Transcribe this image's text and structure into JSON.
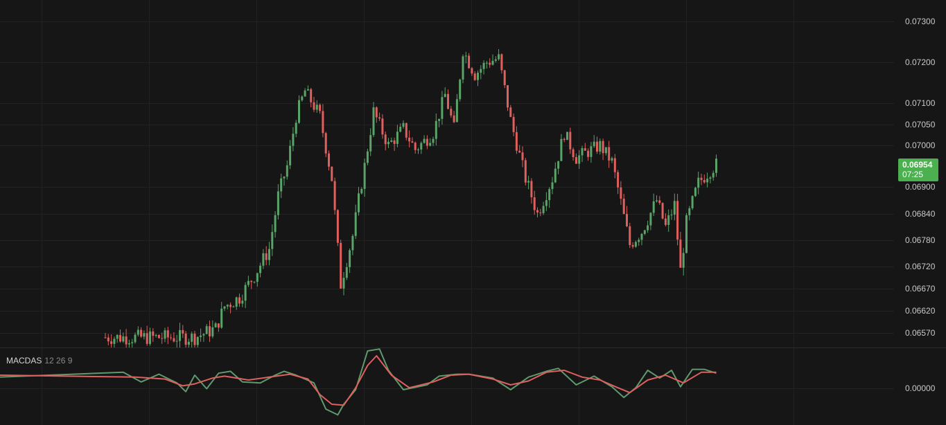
{
  "colors": {
    "background": "#161616",
    "grid": "#222222",
    "up": "#5aa469",
    "down": "#e0605e",
    "macd_line": "#5f9a6e",
    "signal_line": "#e0605e",
    "badge": "#4caf50",
    "pane_divider": "#2b2b2b"
  },
  "indicator": {
    "name": "MACDAS",
    "params": "12 26 9"
  },
  "last_price": {
    "value": "0.06954",
    "countdown": "07:25"
  },
  "price_axis": {
    "labels": [
      "0.07300",
      "0.07200",
      "0.07100",
      "0.07050",
      "0.07000",
      "0.06900",
      "0.06840",
      "0.06780",
      "0.06720",
      "0.06670",
      "0.06620",
      "0.06570"
    ]
  },
  "macd_axis": {
    "labels": [
      "0.00000"
    ]
  },
  "chart_data": [
    {
      "type": "candlestick",
      "pane": "price",
      "ylim": [
        0.06565,
        0.073
      ],
      "y_ticks": [
        0.073,
        0.072,
        0.071,
        0.0705,
        0.07,
        0.069,
        0.0684,
        0.0678,
        0.0672,
        0.0667,
        0.0662,
        0.0657
      ],
      "grid": true,
      "candle_count": 205,
      "approx_close_path": [
        [
          0,
          0.0656
        ],
        [
          30,
          0.0656
        ],
        [
          37,
          0.0658
        ],
        [
          40,
          0.0663
        ],
        [
          45,
          0.0665
        ],
        [
          50,
          0.067
        ],
        [
          55,
          0.0676
        ],
        [
          58,
          0.0688
        ],
        [
          61,
          0.0695
        ],
        [
          64,
          0.0707
        ],
        [
          67,
          0.0713
        ],
        [
          72,
          0.0707
        ],
        [
          76,
          0.0692
        ],
        [
          79,
          0.0668
        ],
        [
          83,
          0.0679
        ],
        [
          87,
          0.0695
        ],
        [
          90,
          0.0708
        ],
        [
          95,
          0.07
        ],
        [
          100,
          0.0704
        ],
        [
          104,
          0.0699
        ],
        [
          110,
          0.0703
        ],
        [
          114,
          0.0712
        ],
        [
          117,
          0.0704
        ],
        [
          120,
          0.0723
        ],
        [
          124,
          0.0717
        ],
        [
          128,
          0.072
        ],
        [
          132,
          0.0721
        ],
        [
          136,
          0.0706
        ],
        [
          141,
          0.0692
        ],
        [
          145,
          0.0684
        ],
        [
          150,
          0.0692
        ],
        [
          154,
          0.0703
        ],
        [
          158,
          0.0697
        ],
        [
          166,
          0.07
        ],
        [
          170,
          0.0696
        ],
        [
          176,
          0.0677
        ],
        [
          180,
          0.068
        ],
        [
          185,
          0.0687
        ],
        [
          188,
          0.0681
        ],
        [
          191,
          0.0686
        ],
        [
          193,
          0.0671
        ],
        [
          195,
          0.0682
        ],
        [
          199,
          0.0691
        ],
        [
          203,
          0.0694
        ],
        [
          205,
          0.06954
        ]
      ]
    },
    {
      "type": "line",
      "pane": "indicator",
      "title": "MACDAS 12 26 9",
      "y_ticks": [
        0.0
      ],
      "series": [
        {
          "x": [
            0,
            6,
            12,
            18,
            24,
            27,
            30,
            34,
            38,
            42,
            46,
            52,
            57,
            60,
            64,
            70,
            74,
            78,
            80,
            84,
            88,
            92,
            95,
            100,
            108,
            112,
            118,
            122,
            130,
            136,
            142,
            148,
            152,
            158,
            164,
            170,
            174,
            178,
            182,
            186,
            190,
            193,
            197,
            201,
            205
          ],
          "values": [
            0.3,
            0.8,
            -0.2,
            0.6,
            -0.3,
            -1.2,
            0.5,
            -0.9,
            0.7,
            0.9,
            -0.2,
            -0.3,
            0.5,
            0.9,
            0.5,
            -0.3,
            -3.0,
            -3.6,
            -2.5,
            -1.0,
            3.0,
            3.2,
            1.0,
            -1.0,
            -0.5,
            0.4,
            0.6,
            0.6,
            0.2,
            -1.0,
            0.3,
            0.9,
            1.2,
            -0.5,
            0.4,
            -0.7,
            -1.8,
            -0.8,
            1.0,
            0.2,
            1.0,
            -0.7,
            1.1,
            1.1,
            0.7
          ]
        },
        {
          "x": [
            0,
            10,
            20,
            26,
            30,
            36,
            40,
            48,
            55,
            62,
            68,
            72,
            76,
            80,
            84,
            88,
            91,
            96,
            102,
            110,
            116,
            122,
            130,
            136,
            142,
            148,
            154,
            160,
            166,
            172,
            176,
            182,
            188,
            194,
            200,
            205
          ],
          "values": [
            0.5,
            0.3,
            0.1,
            -0.6,
            -0.4,
            0.2,
            0.4,
            0.0,
            0.3,
            0.6,
            0.1,
            -1.5,
            -2.5,
            -2.6,
            -0.8,
            1.5,
            2.5,
            0.5,
            -0.8,
            -0.2,
            0.5,
            0.6,
            0.1,
            -0.5,
            -0.1,
            0.8,
            1.0,
            0.3,
            0.0,
            -0.8,
            -1.3,
            0.0,
            0.5,
            -0.3,
            0.8,
            0.8
          ]
        }
      ]
    }
  ]
}
